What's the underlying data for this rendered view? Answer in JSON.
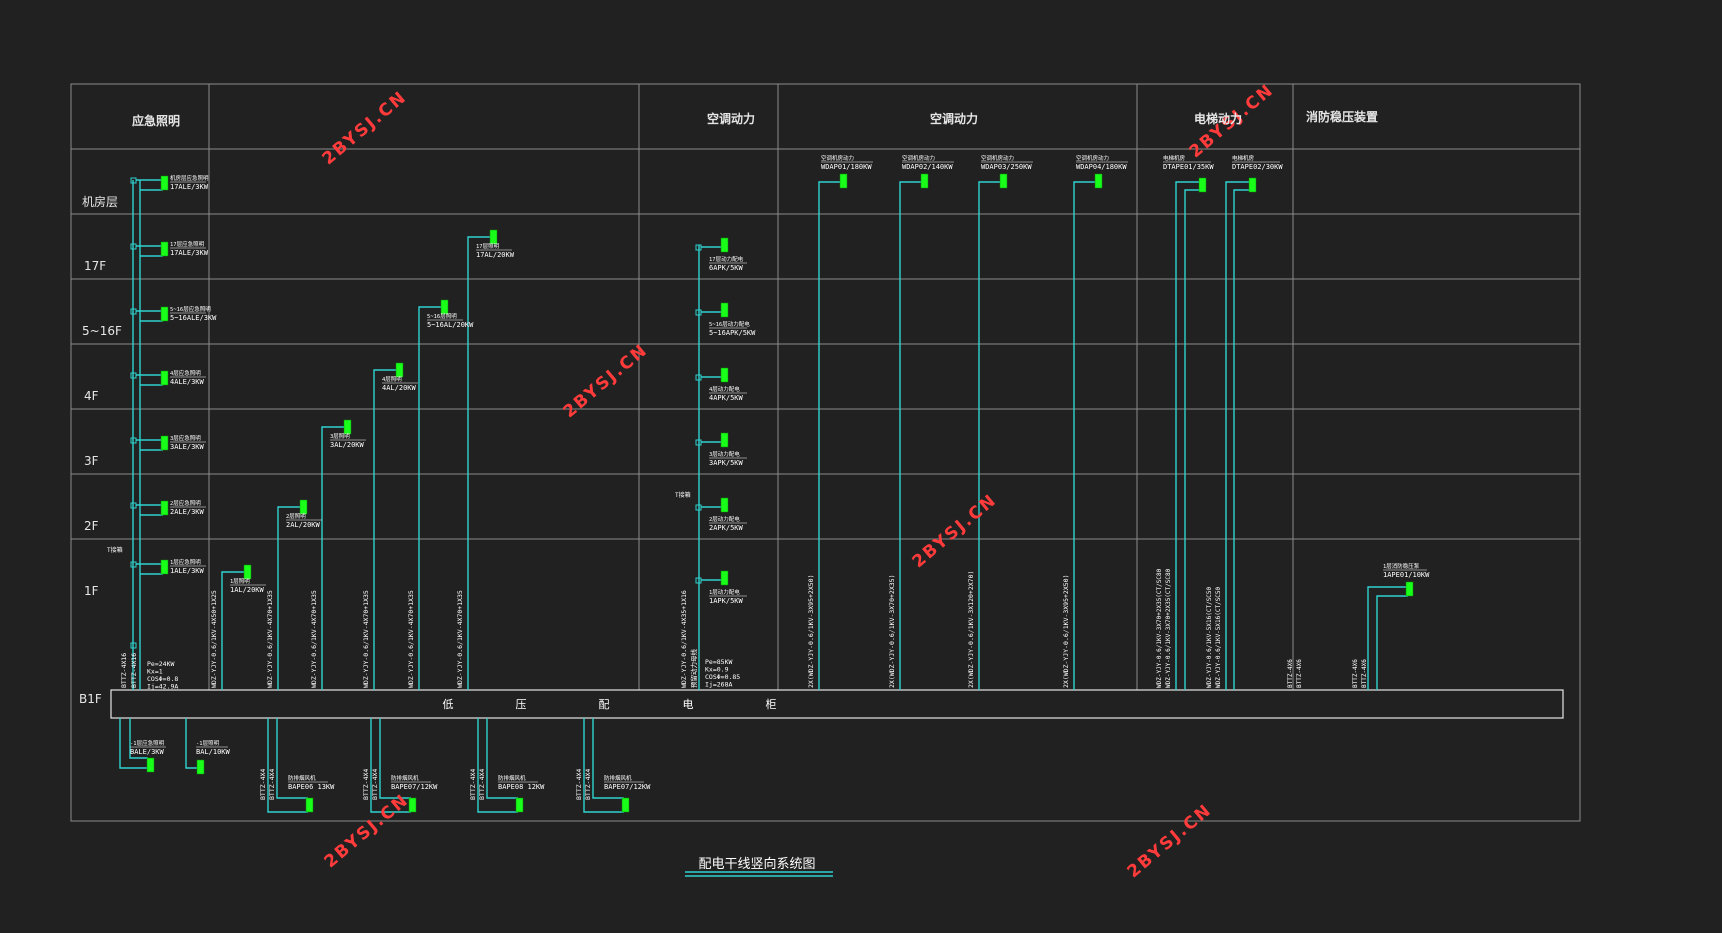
{
  "title": "配电干线竖向系统图",
  "colors": {
    "background": "#212121",
    "grid": "#8c8c8c",
    "cyan": "#2fd3cf",
    "green": "#19ff19",
    "text": "#ffffff",
    "watermark": "#ff3b3b"
  },
  "headers": [
    "应急照明",
    "空调动力",
    "空调动力",
    "电梯动力",
    "消防稳压装置"
  ],
  "floors": [
    "机房层",
    "17F",
    "5~16F",
    "4F",
    "3F",
    "2F",
    "1F",
    "B1F"
  ],
  "panel": {
    "chars": [
      "低",
      "压",
      "配",
      "电",
      "柜"
    ]
  },
  "emergency_lighting": {
    "panels": [
      {
        "name": "机房层应急照明",
        "id": "17ALE/3KW"
      },
      {
        "name": "17层应急照明",
        "id": "17ALE/3KW"
      },
      {
        "name": "5~16层应急照明",
        "id": "5~16ALE/3KW"
      },
      {
        "name": "4层应急照明",
        "id": "4ALE/3KW"
      },
      {
        "name": "3层应急照明",
        "id": "3ALE/3KW"
      },
      {
        "name": "2层应急照明",
        "id": "2ALE/3KW"
      },
      {
        "name": "1层应急照明",
        "id": "1ALE/3KW"
      }
    ],
    "trunk": "BTTZ-4X16",
    "te": "T接箱",
    "calc": [
      "Pe=24KW",
      "Kx=1",
      "COSΦ=0.8",
      "Ij=42.9A"
    ]
  },
  "lighting": {
    "panels": [
      {
        "name": "1层照明",
        "id": "1AL/20KW"
      },
      {
        "name": "2层照明",
        "id": "2AL/20KW"
      },
      {
        "name": "3层照明",
        "id": "3AL/20KW"
      },
      {
        "name": "4层照明",
        "id": "4AL/20KW"
      },
      {
        "name": "5~16层照明",
        "id": "5~16AL/20KW"
      },
      {
        "name": "17层照明",
        "id": "17AL/20KW"
      }
    ],
    "cables": [
      "WDZ-YJY-0.6/1KV-4X50+1X25",
      "WDZ-YJY-0.6/1KV-4X70+1X35",
      "WDZ-YJY-0.6/1KV-4X70+1X35",
      "WDZ-YJY-0.6/1KV-4X70+1X35",
      "WDZ-YJY-0.6/1KV-4X70+1X35",
      "WDZ-YJY-0.6/1KV-4X70+1X35"
    ]
  },
  "power": {
    "panels": [
      {
        "name": "1层动力配电",
        "id": "1APK/5KW"
      },
      {
        "name": "2层动力配电",
        "id": "2APK/5KW"
      },
      {
        "name": "3层动力配电",
        "id": "3APK/5KW"
      },
      {
        "name": "4层动力配电",
        "id": "4APK/5KW"
      },
      {
        "name": "5~16层动力配电",
        "id": "5~16APK/5KW"
      },
      {
        "name": "17层动力配电",
        "id": "6APK/5KW"
      }
    ],
    "cable": "WDZ-YJY-0.6/1KV-4X35+1X16",
    "te": "T接箱",
    "left_note": "预留动力母线",
    "calc": [
      "Pe=85KW",
      "Kx=0.9",
      "COSΦ=0.85",
      "Ij=268A"
    ]
  },
  "ac": {
    "panels": [
      {
        "name": "空调机房动力",
        "id": "WDAP01/180KW",
        "cable": "2X(WDZ-YJY-0.6/1KV-3X95+2X50)"
      },
      {
        "name": "空调机房动力",
        "id": "WDAP02/140KW",
        "cable": "2X(WDZ-YJY-0.6/1KV-3X70+2X35)"
      },
      {
        "name": "空调机房动力",
        "id": "WDAP03/250KW",
        "cable": "2X(WDZ-YJY-0.6/1KV-3X120+2X70)"
      },
      {
        "name": "空调机房动力",
        "id": "WDAP04/180KW",
        "cable": "2X(WDZ-YJY-0.6/1KV-3X95+2X50)"
      }
    ]
  },
  "elevator": {
    "panels": [
      {
        "name": "电梯机房",
        "id": "DTAPE01/35KW"
      },
      {
        "name": "电梯机房",
        "id": "DTAPE02/30KW"
      }
    ],
    "cables": [
      "WDZ-YJY-0.6/1KV-3X70+2X35(CT/SC80",
      "WDZ-YJY-0.6/1KV-3X70+2X35(CT/SC80",
      "WDZ-YJY-0.6/1KV-5X16(CT/SC50",
      "WDZ-YJY-0.6/1KV-5X16(CT/SC50"
    ]
  },
  "fire_pump": {
    "panel": {
      "name": "1层消防稳压泵",
      "id": "1APE01/10KW"
    },
    "cables": [
      "BTTZ-4X6",
      "BTTZ-4X6",
      "BTTZ-4X6",
      "BTTZ-4X6"
    ]
  },
  "basement": {
    "panels": [
      {
        "name": "-1层应急照明",
        "id": "BALE/3KW"
      },
      {
        "name": "-1层照明",
        "id": "BAL/10KW"
      },
      {
        "name": "防排烟风机",
        "id": "BAPE06 13KW"
      },
      {
        "name": "防排烟风机",
        "id": "BAPE07/12KW"
      },
      {
        "name": "防排烟风机",
        "id": "BAPE08 12KW"
      },
      {
        "name": "防排烟风机",
        "id": "BAPE07/12KW"
      }
    ],
    "cables": [
      "BTTZ-4X4",
      "BTTZ-4X4",
      "BTTZ-4X4",
      "BTTZ-4X4",
      "BTTZ-4X4",
      "BTTZ-4X4",
      "BTTZ-4X4",
      "BTTZ-4X4"
    ]
  },
  "watermark": "2BYSJ.CN"
}
